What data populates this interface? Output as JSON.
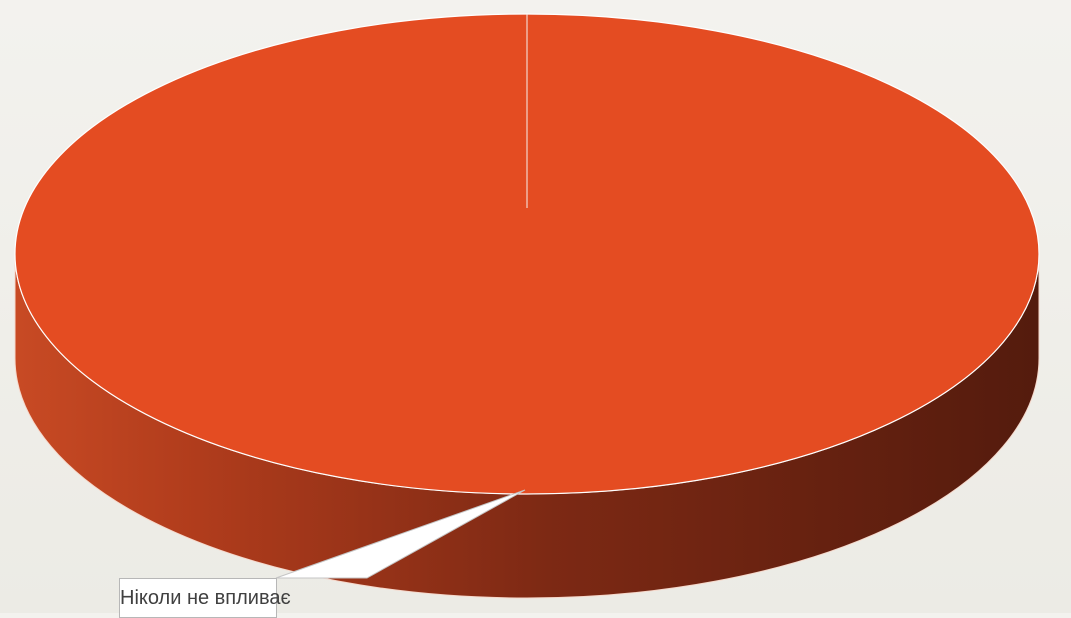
{
  "chart_data": {
    "type": "pie",
    "categories": [
      "Ніколи не впливає"
    ],
    "values": [
      100
    ],
    "colors": [
      "#e44c22"
    ],
    "legend": "none",
    "style": "3d"
  }
}
